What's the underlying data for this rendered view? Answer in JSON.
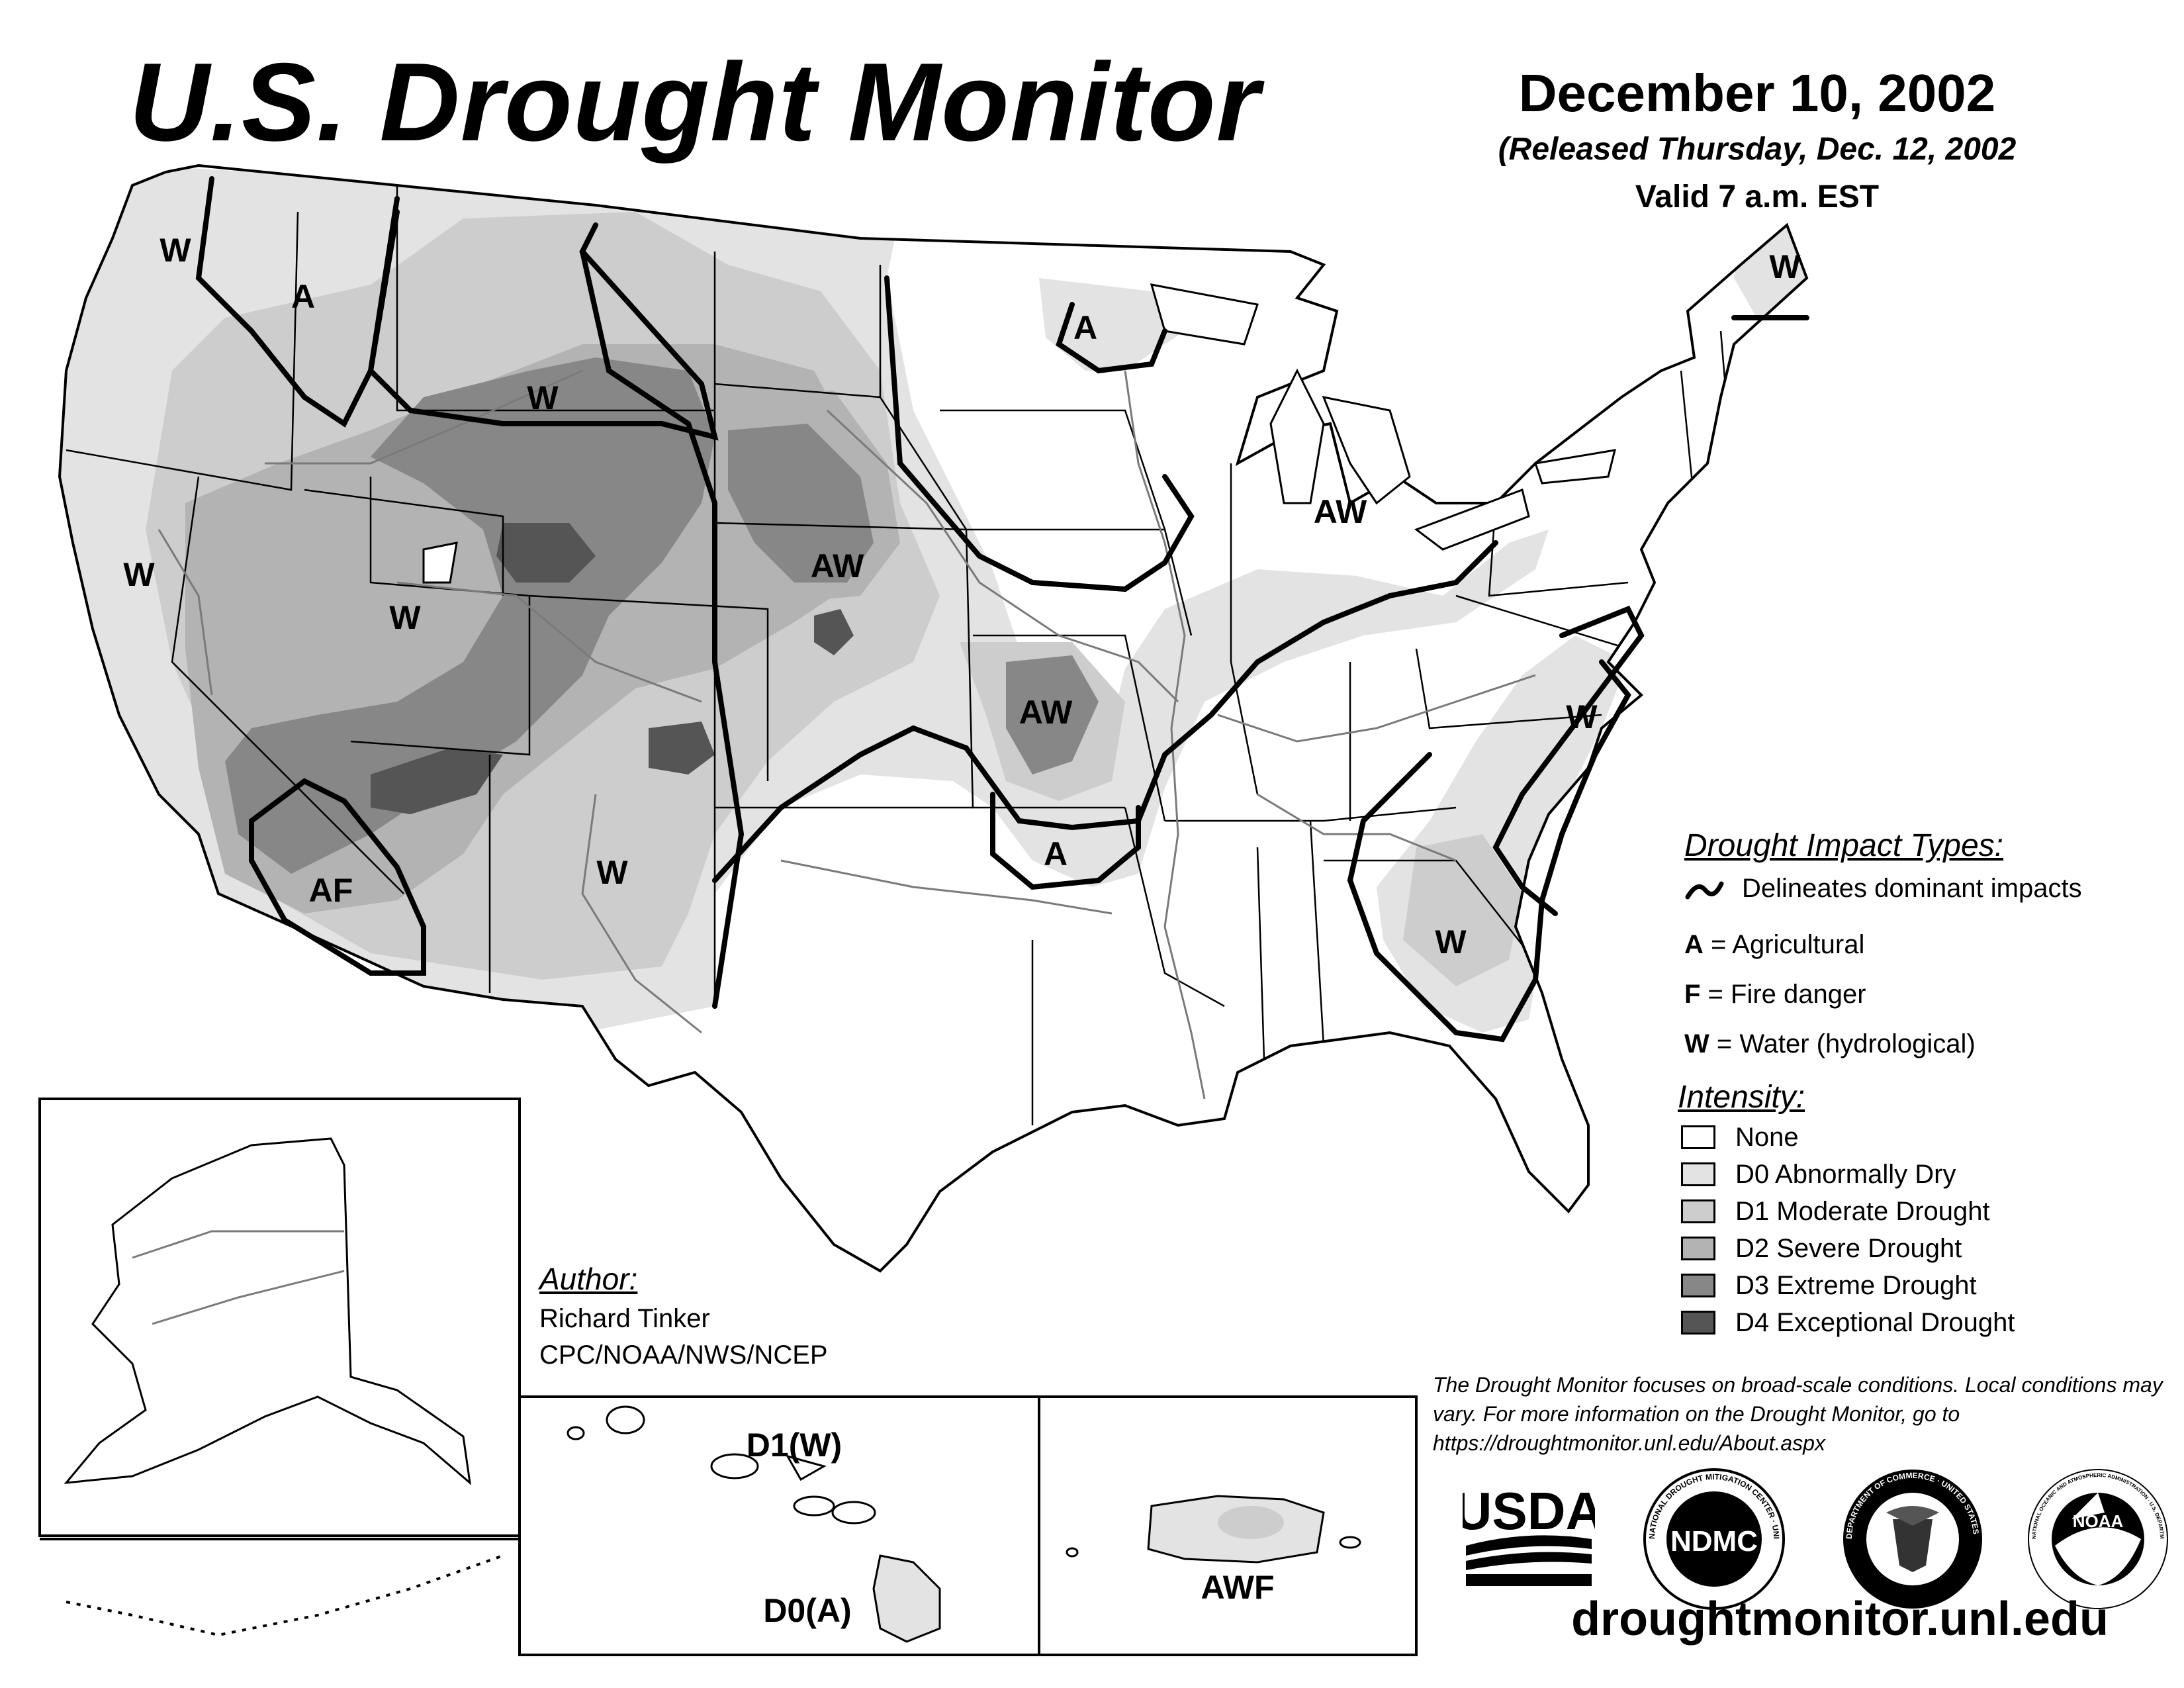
{
  "title": "U.S. Drought Monitor",
  "date": "December 10, 2002",
  "released": "(Released Thursday, Dec. 12, 2002",
  "valid": "Valid 7 a.m. EST",
  "map_labels": [
    {
      "id": "wa-w",
      "text": "W"
    },
    {
      "id": "id-a",
      "text": "A"
    },
    {
      "id": "mn-a",
      "text": "A"
    },
    {
      "id": "me-w",
      "text": "W"
    },
    {
      "id": "mt-w",
      "text": "W"
    },
    {
      "id": "mi-aw",
      "text": "AW"
    },
    {
      "id": "ca-w",
      "text": "W"
    },
    {
      "id": "ne-aw",
      "text": "AW"
    },
    {
      "id": "ut-w",
      "text": "W"
    },
    {
      "id": "mo-aw",
      "text": "AW"
    },
    {
      "id": "va-w",
      "text": "W"
    },
    {
      "id": "ar-a",
      "text": "A"
    },
    {
      "id": "nm-w",
      "text": "W"
    },
    {
      "id": "az-af",
      "text": "AF"
    },
    {
      "id": "sc-w",
      "text": "W"
    },
    {
      "id": "hi-d1",
      "text": "D1(W)"
    },
    {
      "id": "hi-d0",
      "text": "D0(A)"
    },
    {
      "id": "pr-awf",
      "text": "AWF"
    }
  ],
  "impact_types": {
    "heading": "Drought Impact Types:",
    "delineates": "Delineates dominant impacts",
    "items": [
      {
        "key": "A",
        "text": " = Agricultural"
      },
      {
        "key": "F",
        "text": " = Fire danger"
      },
      {
        "key": "W",
        "text": " = Water (hydrological)"
      }
    ]
  },
  "intensity": {
    "heading": "Intensity:",
    "items": [
      {
        "label": "None",
        "color": "#ffffff"
      },
      {
        "label": "D0 Abnormally Dry",
        "color": "#e3e3e3"
      },
      {
        "label": "D1 Moderate Drought",
        "color": "#cdcdcd"
      },
      {
        "label": "D2 Severe Drought",
        "color": "#b3b3b3"
      },
      {
        "label": "D3 Extreme Drought",
        "color": "#878787"
      },
      {
        "label": "D4 Exceptional Drought",
        "color": "#555555"
      }
    ]
  },
  "author": {
    "heading": "Author:",
    "name": "Richard Tinker",
    "org": "CPC/NOAA/NWS/NCEP"
  },
  "note": "The Drought Monitor focuses on broad-scale conditions. Local conditions may vary. For more information on the Drought Monitor, go to https://droughtmonitor.unl.edu/About.aspx",
  "logos": {
    "usda": "USDA",
    "ndmc": "NDMC",
    "ndmc_ring": "NATIONAL DROUGHT MITIGATION CENTER · UNIVERSITY OF NEBRASKA",
    "commerce_ring": "DEPARTMENT OF COMMERCE · UNITED STATES OF AMERICA",
    "noaa": "NOAA",
    "noaa_ring": "NATIONAL OCEANIC AND ATMOSPHERIC ADMINISTRATION · U.S. DEPARTMENT OF COMMERCE"
  },
  "url": "droughtmonitor.unl.edu"
}
